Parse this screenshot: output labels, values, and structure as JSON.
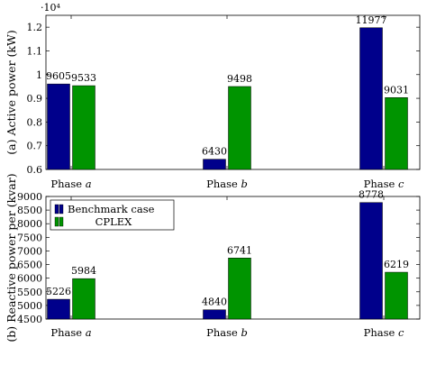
{
  "chart_data": [
    {
      "type": "bar",
      "ylabel": "(a) Active power (kW)",
      "scale_note": "·10⁴",
      "categories": [
        "Phase a",
        "Phase b",
        "Phase c"
      ],
      "category_parts": [
        [
          "Phase ",
          "a"
        ],
        [
          "Phase ",
          "b"
        ],
        [
          "Phase ",
          "c"
        ]
      ],
      "ylim": [
        0.6,
        1.25
      ],
      "yticks": [
        0.6,
        0.7,
        0.8,
        0.9,
        1.0,
        1.1,
        1.2
      ],
      "ytick_labels": [
        "0.6",
        "0.7",
        "0.8",
        "0.9",
        "1",
        "1.1",
        "1.2"
      ],
      "series": [
        {
          "name": "Benchmark case",
          "color": "#00008b",
          "values": [
            0.9605,
            0.643,
            1.1977
          ],
          "labels": [
            "9605",
            "6430",
            "11977"
          ]
        },
        {
          "name": "CPLEX",
          "color": "#009400",
          "values": [
            0.9533,
            0.9498,
            0.9031
          ],
          "labels": [
            "9533",
            "9498",
            "9031"
          ]
        }
      ]
    },
    {
      "type": "bar",
      "ylabel": "(b) Reactive power per (kvar)",
      "categories": [
        "Phase a",
        "Phase b",
        "Phase c"
      ],
      "category_parts": [
        [
          "Phase ",
          "a"
        ],
        [
          "Phase ",
          "b"
        ],
        [
          "Phase ",
          "c"
        ]
      ],
      "ylim": [
        4500,
        9000
      ],
      "yticks": [
        4500,
        5000,
        5500,
        6000,
        6500,
        7000,
        7500,
        8000,
        8500,
        9000
      ],
      "ytick_labels": [
        "4500",
        "5000",
        "5500",
        "6000",
        "6500",
        "7000",
        "7500",
        "8000",
        "8500",
        "9000"
      ],
      "legend": [
        "Benchmark case",
        "CPLEX"
      ],
      "legend_position": "top-left",
      "series": [
        {
          "name": "Benchmark case",
          "color": "#00008b",
          "values": [
            5226,
            4840,
            8778
          ],
          "labels": [
            "5226",
            "4840",
            "8778"
          ]
        },
        {
          "name": "CPLEX",
          "color": "#009400",
          "values": [
            5984,
            6741,
            6219
          ],
          "labels": [
            "5984",
            "6741",
            "6219"
          ]
        }
      ]
    }
  ]
}
